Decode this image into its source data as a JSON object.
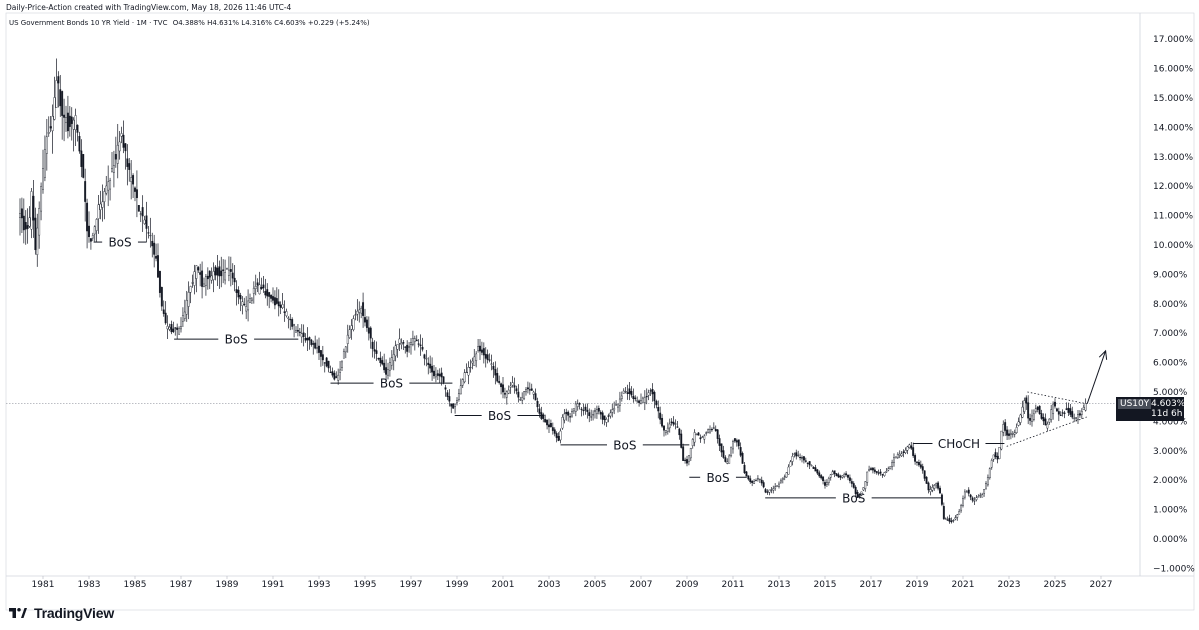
{
  "header": {
    "caption": "Daily-Price-Action created with TradingView.com, May 18, 2026 11:46 UTC-4",
    "legend": "US Government Bonds 10 YR Yield · 1M · TVC",
    "ohlc": "O4.388% H4.631% L4.316% C4.603% +0.229 (+5.24%)"
  },
  "price_badge": {
    "symbol": "US10Y",
    "value": "4.603%",
    "countdown": "11d 6h"
  },
  "brand": {
    "name": "TradingView"
  },
  "colors": {
    "candle": "#131722",
    "grid": "#f0f3fa",
    "last_price_line": "#9598a1",
    "badge": "#131722"
  },
  "chart_data": {
    "type": "candlestick",
    "title": "US Government Bonds 10 YR Yield · 1M · TVC",
    "xlabel": "",
    "ylabel": "",
    "y_unit": "%",
    "ylim": [
      -1.0,
      17.0
    ],
    "xlim": [
      1979.8,
      2028.0
    ],
    "grid": false,
    "last_value": 4.603,
    "x_ticks": [
      "1981",
      "1983",
      "1985",
      "1987",
      "1989",
      "1991",
      "1993",
      "1995",
      "1997",
      "1999",
      "2001",
      "2003",
      "2005",
      "2007",
      "2009",
      "2011",
      "2013",
      "2015",
      "2017",
      "2019",
      "2021",
      "2023",
      "2025",
      "2027"
    ],
    "y_ticks": [
      "17.000%",
      "16.000%",
      "15.000%",
      "14.000%",
      "13.000%",
      "12.000%",
      "11.000%",
      "10.000%",
      "9.000%",
      "8.000%",
      "7.000%",
      "6.000%",
      "5.000%",
      "4.000%",
      "3.000%",
      "2.000%",
      "1.000%",
      "0.000%",
      "−1.000%"
    ],
    "y_tick_values": [
      17,
      16,
      15,
      14,
      13,
      12,
      11,
      10,
      9,
      8,
      7,
      6,
      5,
      4,
      3,
      2,
      1,
      0,
      -1
    ],
    "series": [
      {
        "anchors": [
          [
            1980.0,
            11.2
          ],
          [
            1980.3,
            10.5
          ],
          [
            1980.5,
            10.8
          ],
          [
            1980.6,
            11.9
          ],
          [
            1980.75,
            9.8
          ],
          [
            1981.2,
            13.5
          ],
          [
            1981.5,
            14.2
          ],
          [
            1981.7,
            15.8
          ],
          [
            1981.9,
            14.4
          ],
          [
            1982.2,
            14.0
          ],
          [
            1982.5,
            14.3
          ],
          [
            1982.8,
            12.5
          ],
          [
            1983.0,
            10.5
          ],
          [
            1983.2,
            10.1
          ],
          [
            1983.5,
            11.3
          ],
          [
            1983.9,
            12.0
          ],
          [
            1984.2,
            12.9
          ],
          [
            1984.5,
            13.8
          ],
          [
            1984.8,
            12.5
          ],
          [
            1985.1,
            11.7
          ],
          [
            1985.4,
            10.9
          ],
          [
            1985.7,
            10.5
          ],
          [
            1986.0,
            9.5
          ],
          [
            1986.2,
            8.2
          ],
          [
            1986.4,
            7.3
          ],
          [
            1986.7,
            7.1
          ],
          [
            1987.0,
            7.1
          ],
          [
            1987.3,
            7.9
          ],
          [
            1987.5,
            8.6
          ],
          [
            1987.8,
            9.3
          ],
          [
            1988.0,
            8.7
          ],
          [
            1988.3,
            9.0
          ],
          [
            1988.6,
            9.1
          ],
          [
            1988.9,
            9.0
          ],
          [
            1989.2,
            9.2
          ],
          [
            1989.5,
            8.4
          ],
          [
            1989.8,
            7.9
          ],
          [
            1990.0,
            8.0
          ],
          [
            1990.3,
            8.5
          ],
          [
            1990.6,
            8.6
          ],
          [
            1990.9,
            8.2
          ],
          [
            1991.2,
            8.0
          ],
          [
            1991.5,
            7.9
          ],
          [
            1991.9,
            7.3
          ],
          [
            1992.2,
            7.0
          ],
          [
            1992.5,
            6.8
          ],
          [
            1992.9,
            6.6
          ],
          [
            1993.2,
            6.2
          ],
          [
            1993.5,
            5.8
          ],
          [
            1993.8,
            5.4
          ],
          [
            1994.0,
            5.7
          ],
          [
            1994.3,
            6.8
          ],
          [
            1994.6,
            7.5
          ],
          [
            1994.9,
            7.9
          ],
          [
            1995.2,
            7.2
          ],
          [
            1995.5,
            6.3
          ],
          [
            1995.8,
            6.0
          ],
          [
            1996.0,
            5.6
          ],
          [
            1996.3,
            6.3
          ],
          [
            1996.6,
            6.8
          ],
          [
            1996.9,
            6.4
          ],
          [
            1997.2,
            6.9
          ],
          [
            1997.5,
            6.5
          ],
          [
            1997.8,
            6.0
          ],
          [
            1998.1,
            5.6
          ],
          [
            1998.4,
            5.5
          ],
          [
            1998.7,
            4.8
          ],
          [
            1998.9,
            4.4
          ],
          [
            1999.1,
            4.7
          ],
          [
            1999.4,
            5.6
          ],
          [
            1999.7,
            5.9
          ],
          [
            2000.0,
            6.5
          ],
          [
            2000.3,
            6.2
          ],
          [
            2000.6,
            5.9
          ],
          [
            2000.9,
            5.3
          ],
          [
            2001.2,
            4.9
          ],
          [
            2001.5,
            5.3
          ],
          [
            2001.8,
            4.7
          ],
          [
            2002.1,
            5.1
          ],
          [
            2002.4,
            5.0
          ],
          [
            2002.7,
            4.2
          ],
          [
            2003.0,
            3.9
          ],
          [
            2003.3,
            3.7
          ],
          [
            2003.5,
            3.3
          ],
          [
            2003.7,
            4.3
          ],
          [
            2004.0,
            4.2
          ],
          [
            2004.3,
            4.6
          ],
          [
            2004.6,
            4.4
          ],
          [
            2004.9,
            4.2
          ],
          [
            2005.2,
            4.4
          ],
          [
            2005.5,
            4.0
          ],
          [
            2005.8,
            4.4
          ],
          [
            2006.1,
            4.6
          ],
          [
            2006.4,
            5.1
          ],
          [
            2006.7,
            4.8
          ],
          [
            2007.0,
            4.7
          ],
          [
            2007.3,
            4.8
          ],
          [
            2007.5,
            5.1
          ],
          [
            2007.8,
            4.4
          ],
          [
            2008.1,
            3.6
          ],
          [
            2008.4,
            4.0
          ],
          [
            2008.7,
            3.8
          ],
          [
            2008.9,
            2.7
          ],
          [
            2009.1,
            2.6
          ],
          [
            2009.4,
            3.6
          ],
          [
            2009.7,
            3.4
          ],
          [
            2010.0,
            3.7
          ],
          [
            2010.3,
            3.8
          ],
          [
            2010.6,
            2.9
          ],
          [
            2010.8,
            2.5
          ],
          [
            2011.1,
            3.4
          ],
          [
            2011.3,
            3.3
          ],
          [
            2011.6,
            2.2
          ],
          [
            2011.9,
            1.9
          ],
          [
            2012.2,
            2.1
          ],
          [
            2012.5,
            1.6
          ],
          [
            2012.8,
            1.7
          ],
          [
            2013.1,
            1.9
          ],
          [
            2013.4,
            2.2
          ],
          [
            2013.7,
            2.9
          ],
          [
            2014.0,
            2.8
          ],
          [
            2014.3,
            2.6
          ],
          [
            2014.6,
            2.4
          ],
          [
            2014.9,
            2.1
          ],
          [
            2015.1,
            1.8
          ],
          [
            2015.4,
            2.3
          ],
          [
            2015.7,
            2.1
          ],
          [
            2016.0,
            2.2
          ],
          [
            2016.3,
            1.8
          ],
          [
            2016.5,
            1.4
          ],
          [
            2016.8,
            1.8
          ],
          [
            2016.95,
            2.4
          ],
          [
            2017.3,
            2.3
          ],
          [
            2017.6,
            2.2
          ],
          [
            2017.9,
            2.4
          ],
          [
            2018.1,
            2.8
          ],
          [
            2018.4,
            2.9
          ],
          [
            2018.8,
            3.2
          ],
          [
            2018.95,
            2.7
          ],
          [
            2019.3,
            2.4
          ],
          [
            2019.6,
            1.6
          ],
          [
            2019.9,
            1.9
          ],
          [
            2020.1,
            1.5
          ],
          [
            2020.25,
            0.7
          ],
          [
            2020.6,
            0.6
          ],
          [
            2020.9,
            0.9
          ],
          [
            2021.2,
            1.7
          ],
          [
            2021.5,
            1.3
          ],
          [
            2021.9,
            1.5
          ],
          [
            2022.1,
            1.9
          ],
          [
            2022.4,
            2.9
          ],
          [
            2022.6,
            2.7
          ],
          [
            2022.8,
            4.0
          ],
          [
            2023.0,
            3.5
          ],
          [
            2023.3,
            3.6
          ],
          [
            2023.6,
            4.2
          ],
          [
            2023.8,
            4.9
          ],
          [
            2023.95,
            3.9
          ],
          [
            2024.1,
            4.2
          ],
          [
            2024.3,
            4.5
          ],
          [
            2024.7,
            3.8
          ],
          [
            2024.9,
            4.3
          ],
          [
            2025.0,
            4.6
          ],
          [
            2025.3,
            4.2
          ],
          [
            2025.6,
            4.4
          ],
          [
            2025.9,
            4.1
          ],
          [
            2026.1,
            4.2
          ],
          [
            2026.3,
            4.38
          ],
          [
            2026.38,
            4.603
          ]
        ]
      }
    ],
    "annotations": [
      {
        "label": "BoS",
        "x_start": 1983.2,
        "x_end": 1985.5,
        "y": 10.1
      },
      {
        "label": "BoS",
        "x_start": 1986.7,
        "x_end": 1992.1,
        "y": 6.8
      },
      {
        "label": "BoS",
        "x_start": 1993.5,
        "x_end": 1998.8,
        "y": 5.3
      },
      {
        "label": "BoS",
        "x_start": 1998.9,
        "x_end": 2002.8,
        "y": 4.2
      },
      {
        "label": "BoS",
        "x_start": 2003.5,
        "x_end": 2009.1,
        "y": 3.2
      },
      {
        "label": "BoS",
        "x_start": 2009.1,
        "x_end": 2011.6,
        "y": 2.1
      },
      {
        "label": "BoS",
        "x_start": 2012.4,
        "x_end": 2020.1,
        "y": 1.4
      },
      {
        "label": "CHoCH",
        "x_start": 2018.85,
        "x_end": 2022.8,
        "y": 3.25
      }
    ],
    "projection": {
      "type": "arrow",
      "from": [
        2026.4,
        4.6
      ],
      "to": [
        2027.2,
        6.4
      ]
    },
    "wedge": {
      "upper": [
        [
          2023.8,
          5.0
        ],
        [
          2026.38,
          4.6
        ]
      ],
      "lower": [
        [
          2022.9,
          3.15
        ],
        [
          2026.38,
          4.15
        ]
      ]
    }
  }
}
